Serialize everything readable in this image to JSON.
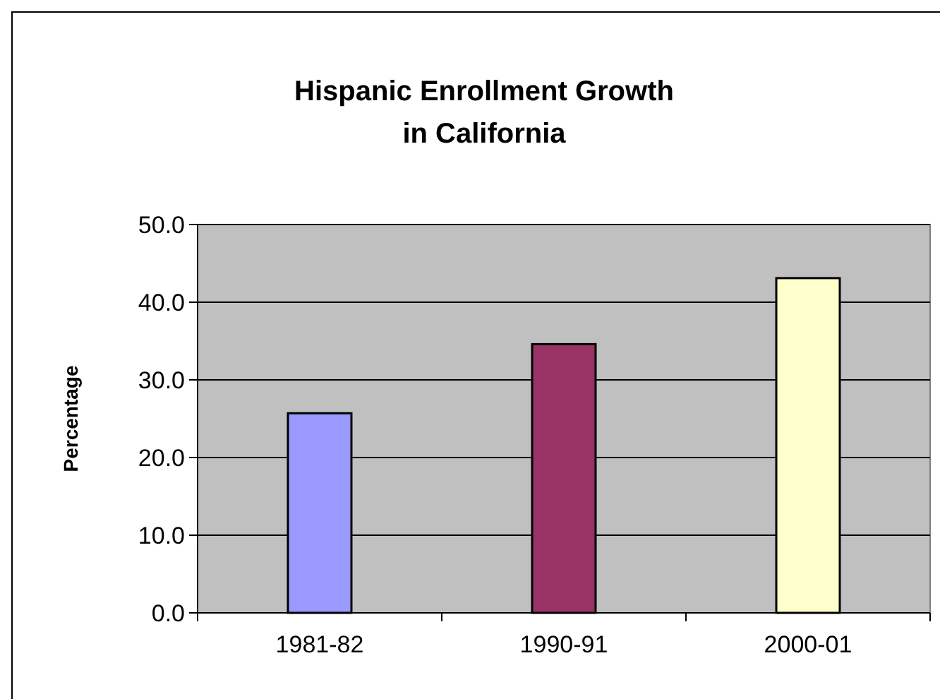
{
  "chart_data": {
    "type": "bar",
    "title": "Hispanic Enrollment Growth\nin California",
    "ylabel": "Percentage",
    "categories": [
      "1981-82",
      "1990-91",
      "2000-01"
    ],
    "values": [
      25.7,
      34.6,
      43.1
    ],
    "colors": [
      "#9999ff",
      "#993366",
      "#ffffcc"
    ],
    "ylim": [
      0,
      50
    ],
    "yticks": [
      {
        "value": 0,
        "label": "0.0"
      },
      {
        "value": 10,
        "label": "10.0"
      },
      {
        "value": 20,
        "label": "20.0"
      },
      {
        "value": 30,
        "label": "30.0"
      },
      {
        "value": 40,
        "label": "40.0"
      },
      {
        "value": 50,
        "label": "50.0"
      }
    ],
    "grid": "y"
  }
}
